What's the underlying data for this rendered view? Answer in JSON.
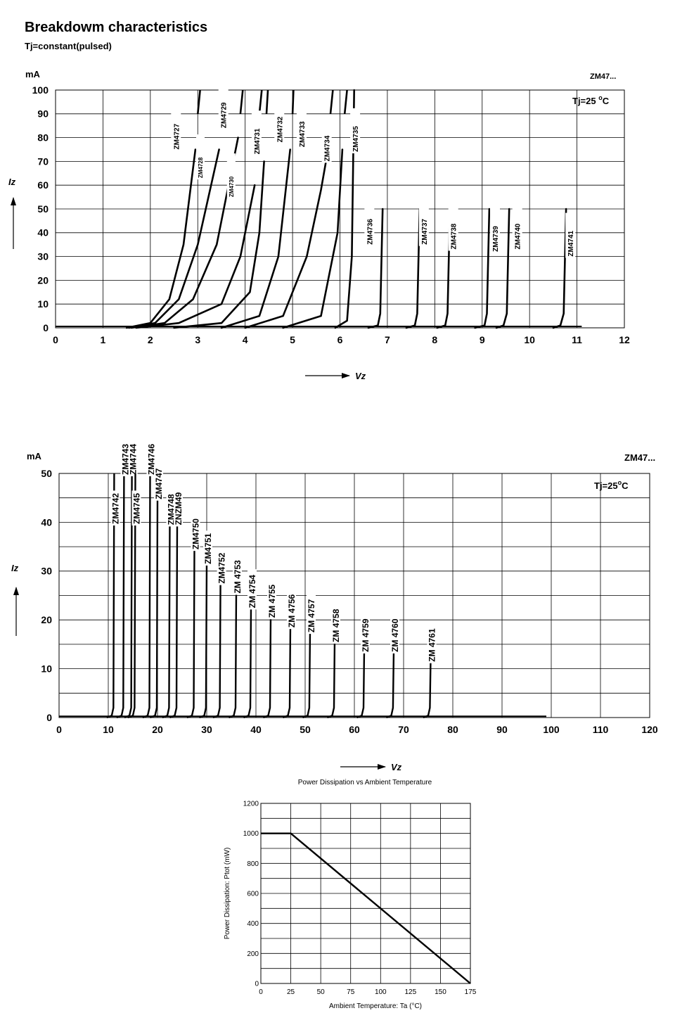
{
  "page": {
    "title": "Breakdowm characteristics",
    "subtitle": "Tj=constant(pulsed)"
  },
  "chart_data": [
    {
      "type": "line",
      "id": "chart1",
      "ylabel": "Iz",
      "yunit": "mA",
      "xlabel": "Vz",
      "series_label": "ZM47...",
      "condition": "Tj=25 °C",
      "condition_main": "Tj=25 ",
      "condition_sup": "o",
      "condition_end": "C",
      "xlim": [
        0,
        12
      ],
      "ylim": [
        0,
        100
      ],
      "xticks": [
        0,
        1,
        2,
        3,
        4,
        5,
        6,
        7,
        8,
        9,
        10,
        11,
        12
      ],
      "yticks": [
        0,
        10,
        20,
        30,
        40,
        50,
        60,
        70,
        80,
        90,
        100
      ],
      "grid": true,
      "series": [
        {
          "name": "ZM4727",
          "points": [
            [
              1.5,
              0
            ],
            [
              2.0,
              2
            ],
            [
              2.4,
              12
            ],
            [
              2.7,
              35
            ],
            [
              2.95,
              75
            ]
          ],
          "top": [
            [
              3.0,
              90
            ],
            [
              3.05,
              100
            ]
          ]
        },
        {
          "name": "ZM4728",
          "points": [
            [
              1.55,
              0
            ],
            [
              2.1,
              2
            ],
            [
              2.6,
              12
            ],
            [
              3.0,
              35
            ],
            [
              3.45,
              75
            ]
          ],
          "top": [
            [
              3.5,
              90
            ],
            [
              3.55,
              100
            ]
          ]
        },
        {
          "name": "ZM4729",
          "points": [
            [
              1.6,
              0
            ],
            [
              2.3,
              2
            ],
            [
              2.9,
              12
            ],
            [
              3.4,
              35
            ],
            [
              3.75,
              70
            ],
            [
              3.85,
              80
            ]
          ],
          "top": [
            [
              3.9,
              90
            ],
            [
              3.95,
              100
            ]
          ]
        },
        {
          "name": "ZM4730",
          "points": [
            [
              1.7,
              0
            ],
            [
              2.6,
              2
            ],
            [
              3.5,
              10
            ],
            [
              3.9,
              30
            ],
            [
              4.2,
              60
            ]
          ],
          "top": [
            [
              4.3,
              90
            ],
            [
              4.35,
              100
            ]
          ]
        },
        {
          "name": "ZM4731",
          "points": [
            [
              2.5,
              0
            ],
            [
              3.5,
              2
            ],
            [
              4.1,
              15
            ],
            [
              4.3,
              40
            ],
            [
              4.4,
              70
            ]
          ],
          "top": [
            [
              4.45,
              90
            ],
            [
              4.48,
              100
            ]
          ]
        },
        {
          "name": "ZM4732",
          "points": [
            [
              3.5,
              0
            ],
            [
              4.3,
              5
            ],
            [
              4.7,
              30
            ],
            [
              4.95,
              75
            ]
          ],
          "top": [
            [
              5.0,
              90
            ],
            [
              5.02,
              100
            ]
          ]
        },
        {
          "name": "ZM4733",
          "points": [
            [
              4.0,
              0
            ],
            [
              4.8,
              5
            ],
            [
              5.3,
              30
            ],
            [
              5.6,
              58
            ],
            [
              5.75,
              75
            ]
          ],
          "top": [
            [
              5.8,
              90
            ],
            [
              5.85,
              100
            ]
          ]
        },
        {
          "name": "ZM4734",
          "points": [
            [
              4.8,
              0
            ],
            [
              5.6,
              5
            ],
            [
              5.95,
              40
            ],
            [
              6.05,
              75
            ]
          ],
          "top": [
            [
              6.1,
              90
            ],
            [
              6.15,
              100
            ]
          ]
        },
        {
          "name": "ZM4735",
          "points": [
            [
              5.9,
              0
            ],
            [
              6.15,
              3
            ],
            [
              6.25,
              30
            ],
            [
              6.3,
              100
            ]
          ]
        },
        {
          "name": "ZM4736",
          "points": [
            [
              6.6,
              0
            ],
            [
              6.8,
              1
            ],
            [
              6.85,
              6
            ],
            [
              6.9,
              50
            ]
          ]
        },
        {
          "name": "ZM4737",
          "points": [
            [
              7.4,
              0
            ],
            [
              7.58,
              1
            ],
            [
              7.63,
              6
            ],
            [
              7.68,
              50
            ]
          ]
        },
        {
          "name": "ZM4738",
          "points": [
            [
              8.05,
              0
            ],
            [
              8.22,
              1
            ],
            [
              8.27,
              6
            ],
            [
              8.32,
              50
            ]
          ]
        },
        {
          "name": "ZM4739",
          "points": [
            [
              8.85,
              0
            ],
            [
              9.05,
              1
            ],
            [
              9.1,
              6
            ],
            [
              9.15,
              50
            ]
          ]
        },
        {
          "name": "ZM4740",
          "points": [
            [
              9.3,
              0
            ],
            [
              9.45,
              1
            ],
            [
              9.52,
              6
            ],
            [
              9.57,
              50
            ]
          ]
        },
        {
          "name": "ZM4741",
          "points": [
            [
              10.5,
              0
            ],
            [
              10.65,
              1
            ],
            [
              10.72,
              6
            ],
            [
              10.77,
              50
            ]
          ]
        }
      ]
    },
    {
      "type": "line",
      "id": "chart2",
      "ylabel": "Iz",
      "yunit": "mA",
      "xlabel": "Vz",
      "series_label": "ZM47...",
      "condition": "Tj=25 °C",
      "condition_main": "Tj=25",
      "condition_sup": "o",
      "condition_end": "C",
      "xlim": [
        0,
        120
      ],
      "ylim": [
        0,
        50
      ],
      "xticks": [
        0,
        10,
        20,
        30,
        40,
        50,
        60,
        70,
        80,
        90,
        100,
        110,
        120
      ],
      "yticks": [
        0,
        10,
        20,
        30,
        40,
        50
      ],
      "grid": true,
      "series": [
        {
          "name": "ZM4742",
          "vz": 11.2,
          "top": 50
        },
        {
          "name": "ZM4743",
          "vz": 13.2,
          "top": 50
        },
        {
          "name": "ZM4744",
          "vz": 14.8,
          "top": 50
        },
        {
          "name": "ZM4745",
          "vz": 15.5,
          "top": 50
        },
        {
          "name": "ZM4746",
          "vz": 18.5,
          "top": 50
        },
        {
          "name": "ZM4747",
          "vz": 20.0,
          "top": 45
        },
        {
          "name": "ZM4748",
          "vz": 22.5,
          "top": 40
        },
        {
          "name": "ZM4749",
          "vz": 24.0,
          "top": 40
        },
        {
          "name": "ZM4750",
          "vz": 27.5,
          "top": 35
        },
        {
          "name": "ZM4751",
          "vz": 30.0,
          "top": 32
        },
        {
          "name": "ZM4752",
          "vz": 32.8,
          "top": 28
        },
        {
          "name": "ZM4753",
          "vz": 36.0,
          "top": 26
        },
        {
          "name": "ZM4754",
          "vz": 39.0,
          "top": 23
        },
        {
          "name": "ZM4755",
          "vz": 43.0,
          "top": 21
        },
        {
          "name": "ZM4756",
          "vz": 47.0,
          "top": 19
        },
        {
          "name": "ZM4757",
          "vz": 51.0,
          "top": 18
        },
        {
          "name": "ZM4758",
          "vz": 56.0,
          "top": 16
        },
        {
          "name": "ZM4759",
          "vz": 62.0,
          "top": 14
        },
        {
          "name": "ZM4760",
          "vz": 68.0,
          "top": 14
        },
        {
          "name": "ZM4761",
          "vz": 75.5,
          "top": 12
        }
      ],
      "label_text": [
        "ZM4742",
        "ZM4743",
        "ZM4744",
        "ZM4745",
        "ZM4746",
        "ZM4747",
        "ZM4748",
        "ZNZM49",
        "ZM4750",
        "ZM4751",
        "ZM4752",
        "ZM 4753",
        "ZM 4754",
        "ZM 4755",
        "ZM 4756",
        "ZM 4757",
        "ZM 4758",
        "ZM 4759",
        "ZM 4760",
        "ZM 4761"
      ]
    },
    {
      "type": "line",
      "id": "chart3",
      "title": "Power Dissipation vs Ambient Temperature",
      "xlabel": "Ambient Temperature: Ta (°C)",
      "ylabel": "Power Dissipation: Ptot (mW)",
      "xlim": [
        0,
        175
      ],
      "ylim": [
        0,
        1200
      ],
      "xticks": [
        0,
        25,
        50,
        75,
        100,
        125,
        150,
        175
      ],
      "yticks": [
        0,
        200,
        400,
        600,
        800,
        1000,
        1200
      ],
      "grid": true,
      "series": [
        {
          "name": "",
          "points": [
            [
              0,
              1000
            ],
            [
              25,
              1000
            ],
            [
              175,
              0
            ]
          ]
        }
      ]
    }
  ]
}
